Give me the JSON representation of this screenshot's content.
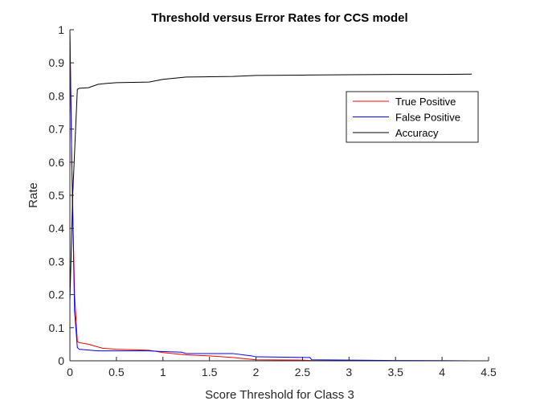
{
  "chart_data": {
    "type": "line",
    "title": "Threshold versus Error Rates for CCS model",
    "xlabel": "Score Threshold for Class 3",
    "ylabel": "Rate",
    "xlim": [
      0,
      4.5
    ],
    "ylim": [
      0,
      1
    ],
    "xticks": [
      "0",
      "0.5",
      "1",
      "1.5",
      "2",
      "2.5",
      "3",
      "3.5",
      "4",
      "4.5"
    ],
    "yticks": [
      "0",
      "0.1",
      "0.2",
      "0.3",
      "0.4",
      "0.5",
      "0.6",
      "0.7",
      "0.8",
      "0.9",
      "1"
    ],
    "grid": false,
    "legend_position": "top-right",
    "series": [
      {
        "name": "True Positive",
        "color": "#ff0000",
        "x": [
          0,
          0.02,
          0.05,
          0.08,
          0.1,
          0.2,
          0.35,
          0.5,
          0.85,
          1.0,
          1.25,
          1.5,
          1.75,
          2.0,
          2.5,
          2.6,
          3.0,
          3.5,
          4.0,
          4.32
        ],
        "y": [
          1.0,
          0.6,
          0.2,
          0.058,
          0.055,
          0.05,
          0.038,
          0.035,
          0.032,
          0.025,
          0.018,
          0.015,
          0.01,
          0.003,
          0.002,
          0.001,
          0.0005,
          0.0,
          0.0,
          0.0
        ]
      },
      {
        "name": "False Positive",
        "color": "#0000ff",
        "x": [
          0,
          0.02,
          0.05,
          0.08,
          0.1,
          0.3,
          0.5,
          0.85,
          1.0,
          1.2,
          1.25,
          1.75,
          1.95,
          2.0,
          2.58,
          2.6,
          3.0,
          3.5,
          4.0,
          4.32
        ],
        "y": [
          1.0,
          0.6,
          0.15,
          0.04,
          0.035,
          0.03,
          0.03,
          0.03,
          0.028,
          0.026,
          0.022,
          0.022,
          0.015,
          0.012,
          0.01,
          0.003,
          0.002,
          0.001,
          0.0005,
          0.0
        ]
      },
      {
        "name": "Accuracy",
        "color": "#000000",
        "x": [
          0,
          0.03,
          0.08,
          0.1,
          0.2,
          0.3,
          0.4,
          0.5,
          0.85,
          1.0,
          1.25,
          1.5,
          1.75,
          2.0,
          2.5,
          3.0,
          3.5,
          4.0,
          4.32
        ],
        "y": [
          0.18,
          0.5,
          0.82,
          0.823,
          0.825,
          0.835,
          0.838,
          0.84,
          0.842,
          0.85,
          0.857,
          0.858,
          0.859,
          0.862,
          0.863,
          0.864,
          0.865,
          0.865,
          0.866
        ]
      }
    ]
  }
}
